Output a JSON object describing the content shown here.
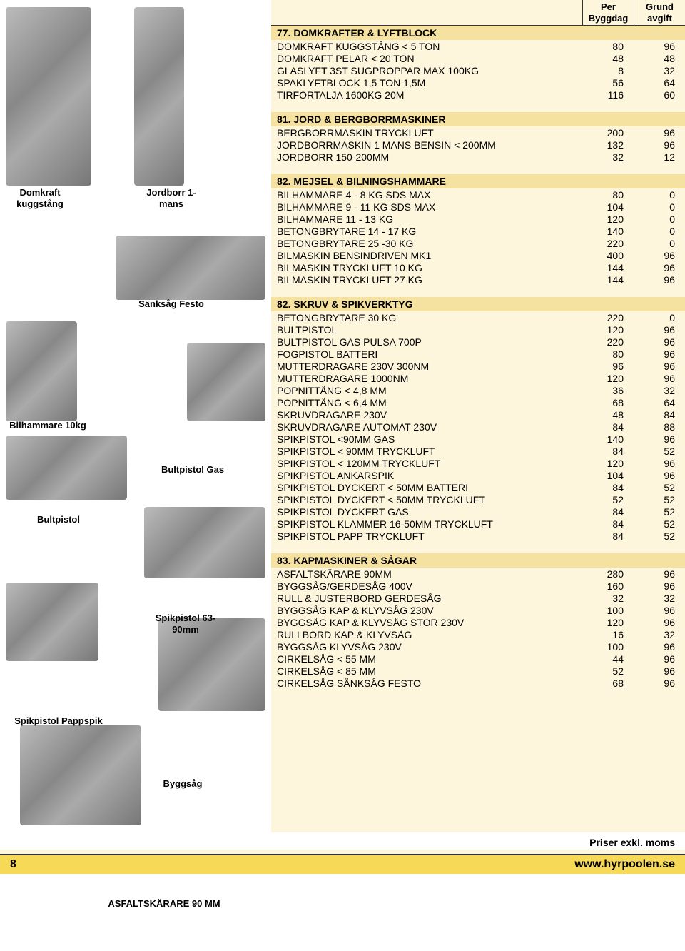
{
  "header": {
    "col1_line1": "Per",
    "col1_line2": "Byggdag",
    "col2_line1": "Grund",
    "col2_line2": "avgift"
  },
  "images": {
    "domkraft_label": "Domkraft kuggstång",
    "jordborr_label": "Jordborr 1-mans",
    "sanksag_label": "Sänksåg Festo",
    "bilhammare_label": "Bilhammare 10kg",
    "bultpistolgas_label": "Bultpistol Gas",
    "bultpistol_label": "Bultpistol",
    "spik6390_label": "Spikpistol 63-90mm",
    "pappspik_label": "Spikpistol Pappspik",
    "byggsag_label": "Byggsåg",
    "asfalt_label": "ASFALTSKÄRARE 90 MM"
  },
  "sections": [
    {
      "title": "77. DOMKRAFTER & LYFTBLOCK",
      "rows": [
        {
          "name": "DOMKRAFT KUGGSTÅNG < 5 TON",
          "per": "80",
          "grund": "96"
        },
        {
          "name": "DOMKRAFT PELAR < 20 TON",
          "per": "48",
          "grund": "48"
        },
        {
          "name": "GLASLYFT 3ST SUGPROPPAR MAX 100KG",
          "per": "8",
          "grund": "32"
        },
        {
          "name": "SPAKLYFTBLOCK 1,5 TON 1,5M",
          "per": "56",
          "grund": "64"
        },
        {
          "name": "TIRFORTALJA 1600KG 20M",
          "per": "116",
          "grund": "60"
        }
      ]
    },
    {
      "title": "81. JORD & BERGBORRMASKINER",
      "rows": [
        {
          "name": "BERGBORRMASKIN TRYCKLUFT",
          "per": "200",
          "grund": "96"
        },
        {
          "name": "JORDBORRMASKIN 1 MANS BENSIN < 200MM",
          "per": "132",
          "grund": "96"
        },
        {
          "name": "JORDBORR 150-200MM",
          "per": "32",
          "grund": "12"
        }
      ]
    },
    {
      "title": "82. MEJSEL & BILNINGSHAMMARE",
      "rows": [
        {
          "name": "BILHAMMARE 4 - 8 KG SDS MAX",
          "per": "80",
          "grund": "0"
        },
        {
          "name": "BILHAMMARE 9 - 11 KG SDS MAX",
          "per": "104",
          "grund": "0"
        },
        {
          "name": "BILHAMMARE 11 - 13 KG",
          "per": "120",
          "grund": "0"
        },
        {
          "name": "BETONGBRYTARE 14 - 17 KG",
          "per": "140",
          "grund": "0"
        },
        {
          "name": "BETONGBRYTARE 25 -30 KG",
          "per": "220",
          "grund": "0"
        },
        {
          "name": "BILMASKIN BENSINDRIVEN MK1",
          "per": "400",
          "grund": "96"
        },
        {
          "name": "BILMASKIN TRYCKLUFT 10 KG",
          "per": "144",
          "grund": "96"
        },
        {
          "name": "BILMASKIN TRYCKLUFT 27 KG",
          "per": "144",
          "grund": "96"
        }
      ]
    },
    {
      "title": "82. SKRUV & SPIKVERKTYG",
      "rows": [
        {
          "name": "BETONGBRYTARE 30 KG",
          "per": "220",
          "grund": "0"
        },
        {
          "name": "BULTPISTOL",
          "per": "120",
          "grund": "96"
        },
        {
          "name": "BULTPISTOL GAS PULSA 700P",
          "per": "220",
          "grund": "96"
        },
        {
          "name": "FOGPISTOL BATTERI",
          "per": "80",
          "grund": "96"
        },
        {
          "name": "MUTTERDRAGARE 230V 300NM",
          "per": "96",
          "grund": "96"
        },
        {
          "name": "MUTTERDRAGARE 1000NM",
          "per": "120",
          "grund": "96"
        },
        {
          "name": "POPNITTÅNG < 4,8 MM",
          "per": "36",
          "grund": "32"
        },
        {
          "name": "POPNITTÅNG < 6,4 MM",
          "per": "68",
          "grund": "64"
        },
        {
          "name": "SKRUVDRAGARE 230V",
          "per": "48",
          "grund": "84"
        },
        {
          "name": "SKRUVDRAGARE AUTOMAT 230V",
          "per": "84",
          "grund": "88"
        },
        {
          "name": "SPIKPISTOL <90MM GAS",
          "per": "140",
          "grund": "96"
        },
        {
          "name": "SPIKPISTOL < 90MM TRYCKLUFT",
          "per": "84",
          "grund": "52"
        },
        {
          "name": "SPIKPISTOL < 120MM TRYCKLUFT",
          "per": "120",
          "grund": "96"
        },
        {
          "name": "SPIKPISTOL ANKARSPIK",
          "per": "104",
          "grund": "96"
        },
        {
          "name": "SPIKPISTOL DYCKERT < 50MM BATTERI",
          "per": "84",
          "grund": "52"
        },
        {
          "name": "SPIKPISTOL DYCKERT < 50MM TRYCKLUFT",
          "per": "52",
          "grund": "52"
        },
        {
          "name": "SPIKPISTOL DYCKERT GAS",
          "per": "84",
          "grund": "52"
        },
        {
          "name": "SPIKPISTOL KLAMMER 16-50MM TRYCKLUFT",
          "per": "84",
          "grund": "52"
        },
        {
          "name": "SPIKPISTOL PAPP TRYCKLUFT",
          "per": "84",
          "grund": "52"
        }
      ]
    },
    {
      "title": "83. KAPMASKINER & SÅGAR",
      "rows": [
        {
          "name": "ASFALTSKÄRARE 90MM",
          "per": "280",
          "grund": "96"
        },
        {
          "name": "BYGGSÅG/GERDESÅG 400V",
          "per": "160",
          "grund": "96"
        },
        {
          "name": "RULL & JUSTERBORD GERDESÅG",
          "per": "32",
          "grund": "32"
        },
        {
          "name": "BYGGSÅG KAP & KLYVSÅG 230V",
          "per": "100",
          "grund": "96"
        },
        {
          "name": "BYGGSÅG KAP & KLYVSÅG STOR 230V",
          "per": "120",
          "grund": "96"
        },
        {
          "name": "RULLBORD KAP & KLYVSÅG",
          "per": "16",
          "grund": "32"
        },
        {
          "name": "BYGGSÅG KLYVSÅG 230V",
          "per": "100",
          "grund": "96"
        },
        {
          "name": "CIRKELSÅG < 55 MM",
          "per": "44",
          "grund": "96"
        },
        {
          "name": "CIRKELSÅG < 85 MM",
          "per": "52",
          "grund": "96"
        },
        {
          "name": "CIRKELSÅG SÄNKSÅG FESTO",
          "per": "68",
          "grund": "96"
        }
      ]
    }
  ],
  "footer": {
    "page_number": "8",
    "note": "Priser exkl. moms",
    "url": "www.hyrpoolen.se"
  },
  "colors": {
    "page_bg": "#fdf5dc",
    "section_bg": "#f5e1a0",
    "footer_bg": "#f6d957"
  }
}
